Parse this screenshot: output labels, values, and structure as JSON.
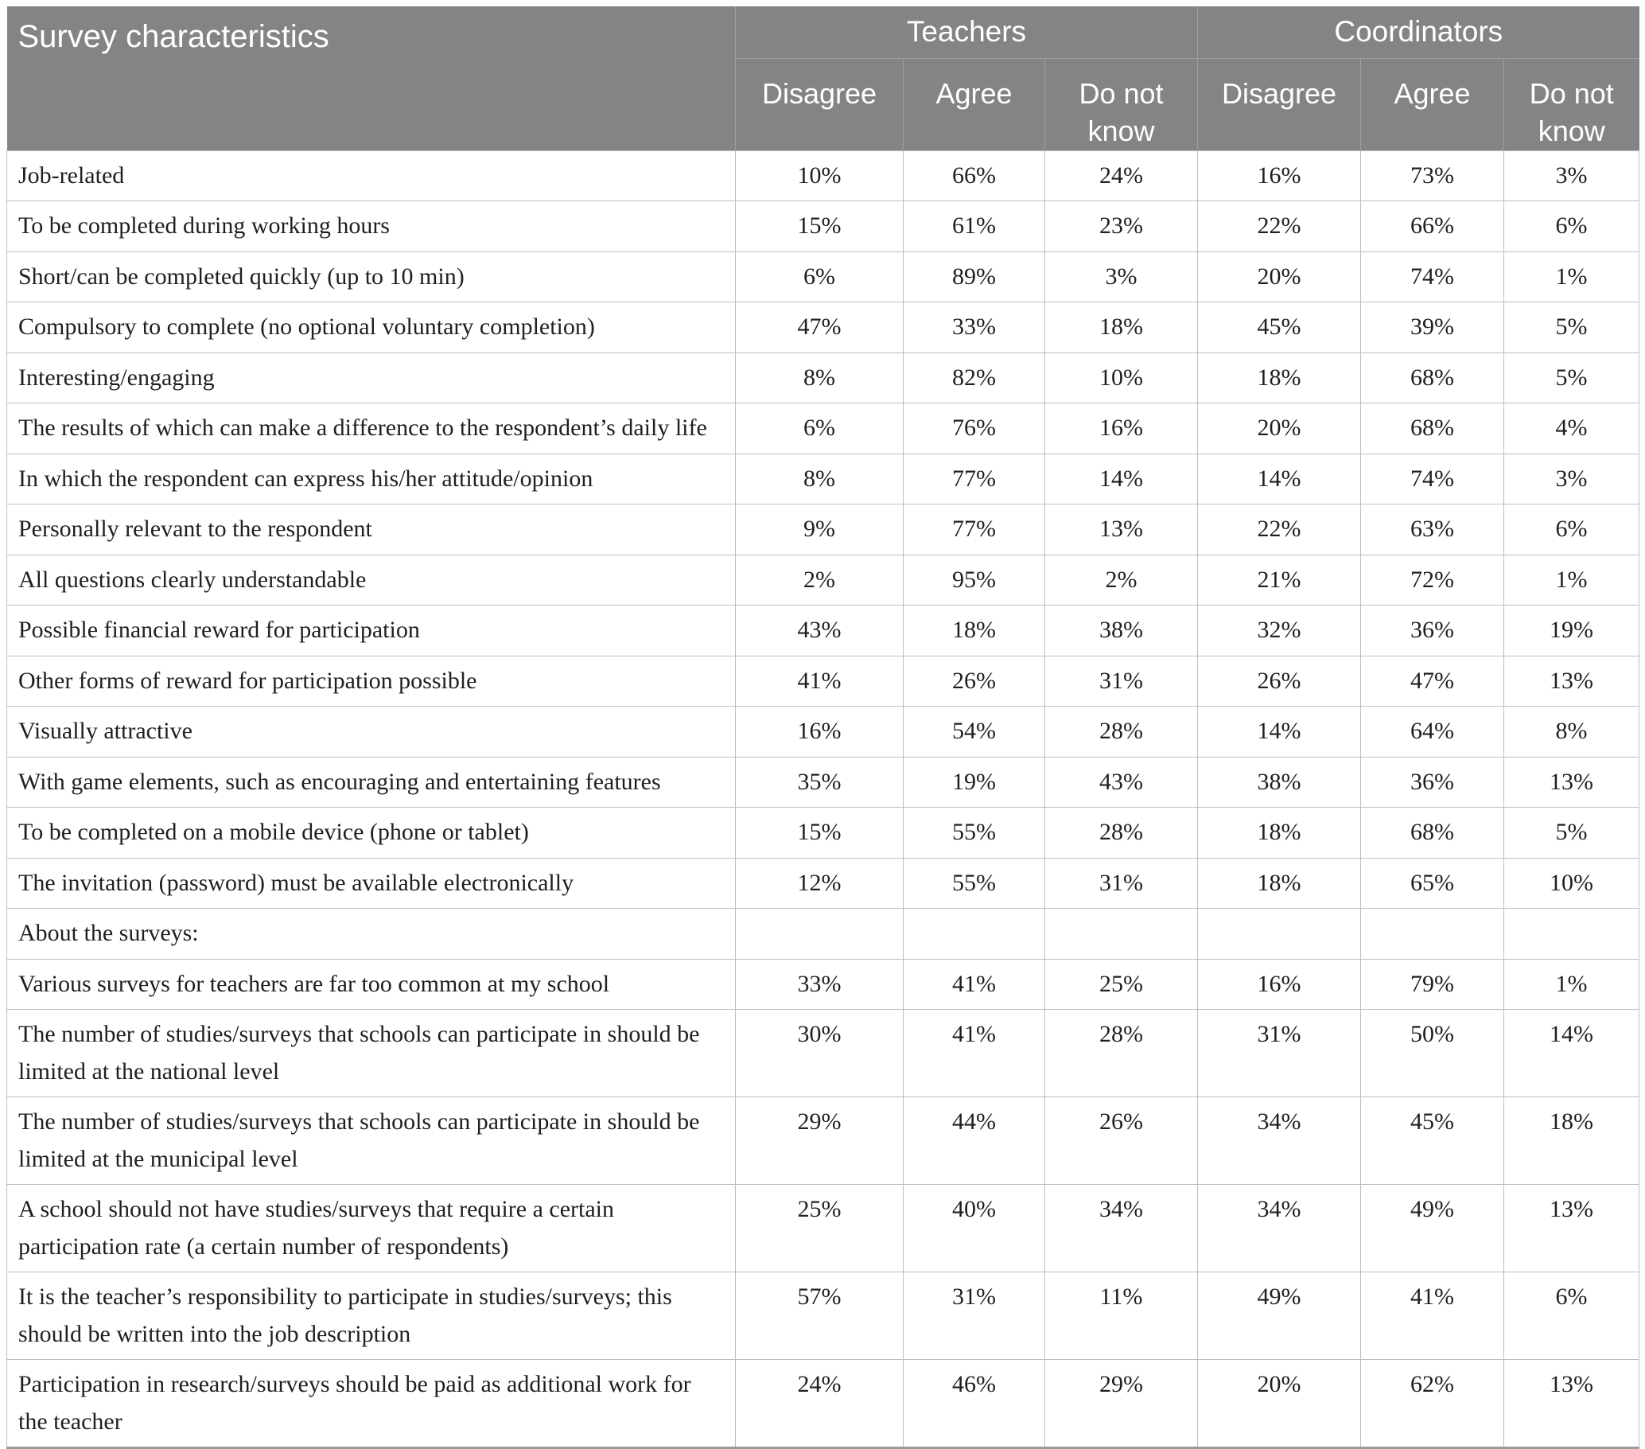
{
  "styles": {
    "header_bg": "#848484",
    "header_text": "#ffffff",
    "header_divider": "#9e9e9e",
    "grid_line": "#bdbdbd",
    "bottom_rule": "#9c9c9c",
    "body_text": "#1f1f1f",
    "page_bg": "#ffffff"
  },
  "chart_data": {
    "type": "table",
    "col1_header": "Survey characteristics",
    "column_groups": [
      {
        "label": "Teachers",
        "columns": [
          "Disagree",
          "Agree",
          "Do not know"
        ]
      },
      {
        "label": "Coordinators",
        "columns": [
          "Disagree",
          "Agree",
          "Do not know"
        ]
      }
    ],
    "rows": [
      {
        "label": "Job-related",
        "section": false,
        "values": [
          "10%",
          "66%",
          "24%",
          "16%",
          "73%",
          "3%"
        ]
      },
      {
        "label": "To be completed during working hours",
        "section": false,
        "values": [
          "15%",
          "61%",
          "23%",
          "22%",
          "66%",
          "6%"
        ]
      },
      {
        "label": "Short/can be completed quickly (up to 10 min)",
        "section": false,
        "values": [
          "6%",
          "89%",
          "3%",
          "20%",
          "74%",
          "1%"
        ]
      },
      {
        "label": "Compulsory to complete (no optional voluntary completion)",
        "section": false,
        "values": [
          "47%",
          "33%",
          "18%",
          "45%",
          "39%",
          "5%"
        ]
      },
      {
        "label": "Interesting/engaging",
        "section": false,
        "values": [
          "8%",
          "82%",
          "10%",
          "18%",
          "68%",
          "5%"
        ]
      },
      {
        "label": "The results of which can make a difference to the respondent’s daily life",
        "section": false,
        "values": [
          "6%",
          "76%",
          "16%",
          "20%",
          "68%",
          "4%"
        ]
      },
      {
        "label": "In which the respondent can express his/her attitude/opinion",
        "section": false,
        "values": [
          "8%",
          "77%",
          "14%",
          "14%",
          "74%",
          "3%"
        ]
      },
      {
        "label": "Personally relevant to the respondent",
        "section": false,
        "values": [
          "9%",
          "77%",
          "13%",
          "22%",
          "63%",
          "6%"
        ]
      },
      {
        "label": "All questions clearly understandable",
        "section": false,
        "values": [
          "2%",
          "95%",
          "2%",
          "21%",
          "72%",
          "1%"
        ]
      },
      {
        "label": "Possible financial reward for participation",
        "section": false,
        "values": [
          "43%",
          "18%",
          "38%",
          "32%",
          "36%",
          "19%"
        ]
      },
      {
        "label": "Other forms of reward for participation possible",
        "section": false,
        "values": [
          "41%",
          "26%",
          "31%",
          "26%",
          "47%",
          "13%"
        ]
      },
      {
        "label": "Visually attractive",
        "section": false,
        "values": [
          "16%",
          "54%",
          "28%",
          "14%",
          "64%",
          "8%"
        ]
      },
      {
        "label": "With game elements, such as encouraging and entertaining features",
        "section": false,
        "values": [
          "35%",
          "19%",
          "43%",
          "38%",
          "36%",
          "13%"
        ]
      },
      {
        "label": "To be completed on a mobile device (phone or tablet)",
        "section": false,
        "values": [
          "15%",
          "55%",
          "28%",
          "18%",
          "68%",
          "5%"
        ]
      },
      {
        "label": "The invitation (password) must be available electronically",
        "section": false,
        "values": [
          "12%",
          "55%",
          "31%",
          "18%",
          "65%",
          "10%"
        ]
      },
      {
        "label": "About the surveys:",
        "section": true,
        "values": [
          "",
          "",
          "",
          "",
          "",
          ""
        ]
      },
      {
        "label": "Various surveys for teachers are far too common at my school",
        "section": false,
        "values": [
          "33%",
          "41%",
          "25%",
          "16%",
          "79%",
          "1%"
        ]
      },
      {
        "label": "The number of studies/surveys that schools can participate in should be limited at the national level",
        "section": false,
        "values": [
          "30%",
          "41%",
          "28%",
          "31%",
          "50%",
          "14%"
        ]
      },
      {
        "label": "The number of studies/surveys that schools can participate in should be limited at the municipal level",
        "section": false,
        "values": [
          "29%",
          "44%",
          "26%",
          "34%",
          "45%",
          "18%"
        ]
      },
      {
        "label": "A school should not have studies/surveys that require a certain participation rate (a certain number of respondents)",
        "section": false,
        "values": [
          "25%",
          "40%",
          "34%",
          "34%",
          "49%",
          "13%"
        ]
      },
      {
        "label": "It is the teacher’s responsibility to participate in studies/surveys; this should be written into the job description",
        "section": false,
        "values": [
          "57%",
          "31%",
          "11%",
          "49%",
          "41%",
          "6%"
        ]
      },
      {
        "label": "Participation in research/surveys should be paid as additional work for the teacher",
        "section": false,
        "values": [
          "24%",
          "46%",
          "29%",
          "20%",
          "62%",
          "13%"
        ]
      }
    ]
  }
}
